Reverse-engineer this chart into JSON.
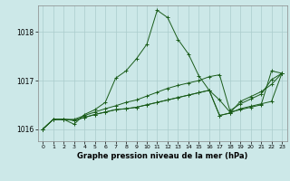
{
  "title": "Graphe pression niveau de la mer (hPa)",
  "bg_color": "#cce8e8",
  "grid_color": "#aacccc",
  "line_color": "#1a5c1a",
  "x_ticks": [
    0,
    1,
    2,
    3,
    4,
    5,
    6,
    7,
    8,
    9,
    10,
    11,
    12,
    13,
    14,
    15,
    16,
    17,
    18,
    19,
    20,
    21,
    22,
    23
  ],
  "ylim": [
    1015.75,
    1018.55
  ],
  "yticks": [
    1016,
    1017,
    1018
  ],
  "series": [
    [
      1016.0,
      1016.2,
      1016.2,
      1016.1,
      1016.3,
      1016.4,
      1016.55,
      1017.05,
      1017.2,
      1017.45,
      1017.75,
      1018.45,
      1018.3,
      1017.85,
      1017.55,
      1017.1,
      1016.8,
      1016.6,
      1016.35,
      1016.4,
      1016.45,
      1016.5,
      1017.2,
      1017.15
    ],
    [
      1016.0,
      1016.2,
      1016.2,
      1016.2,
      1016.28,
      1016.35,
      1016.42,
      1016.48,
      1016.55,
      1016.6,
      1016.68,
      1016.76,
      1016.84,
      1016.9,
      1016.95,
      1017.0,
      1017.08,
      1017.12,
      1016.38,
      1016.52,
      1016.62,
      1016.72,
      1017.02,
      1017.15
    ],
    [
      1016.0,
      1016.2,
      1016.2,
      1016.18,
      1016.24,
      1016.3,
      1016.35,
      1016.4,
      1016.42,
      1016.45,
      1016.5,
      1016.55,
      1016.6,
      1016.65,
      1016.7,
      1016.75,
      1016.8,
      1016.28,
      1016.33,
      1016.42,
      1016.47,
      1016.52,
      1016.57,
      1017.15
    ],
    [
      1016.0,
      1016.2,
      1016.2,
      1016.18,
      1016.24,
      1016.3,
      1016.35,
      1016.4,
      1016.42,
      1016.45,
      1016.5,
      1016.55,
      1016.6,
      1016.65,
      1016.7,
      1016.75,
      1016.8,
      1016.28,
      1016.33,
      1016.57,
      1016.67,
      1016.77,
      1016.92,
      1017.15
    ]
  ]
}
